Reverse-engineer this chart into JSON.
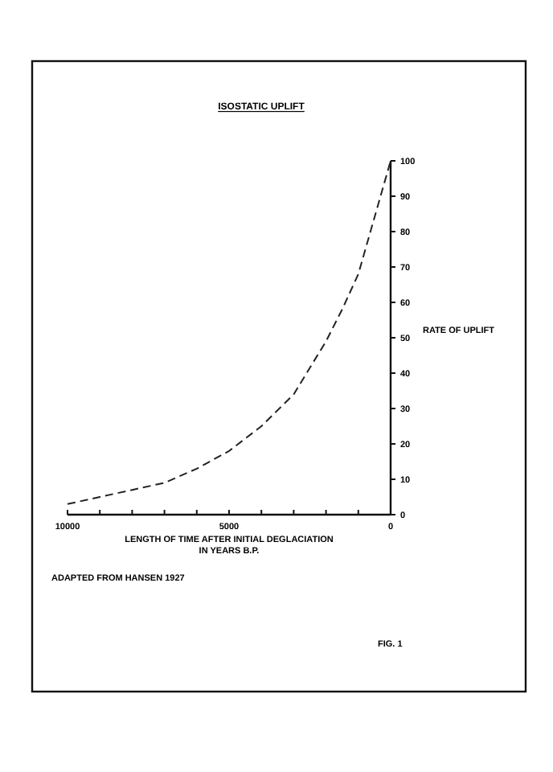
{
  "chart_data": {
    "type": "line",
    "title": "ISOSTATIC UPLIFT",
    "xlabel": "LENGTH OF TIME AFTER INITIAL DEGLACIATION\nIN YEARS B.P.",
    "ylabel": "RATE OF UPLIFT",
    "annotations": [
      "ADAPTED FROM HANSEN 1927",
      "FIG. 1"
    ],
    "x": [
      10000,
      9000,
      8000,
      7000,
      6000,
      5000,
      4000,
      3000,
      2000,
      1500,
      1000,
      500,
      250,
      0
    ],
    "series": [
      {
        "color": "#222222",
        "values": [
          3,
          5,
          7,
          9,
          13,
          18,
          25,
          34,
          49,
          58,
          68,
          84,
          92,
          100
        ]
      }
    ],
    "xlim": [
      10000,
      0
    ],
    "xticks": [
      10000,
      {
        "value": 9000,
        "label": null
      },
      {
        "value": 8000,
        "label": null
      },
      {
        "value": 7000,
        "label": null
      },
      {
        "value": 6000,
        "label": null
      },
      5000,
      {
        "value": 4000,
        "label": null
      },
      {
        "value": 3000,
        "label": null
      },
      {
        "value": 2000,
        "label": null
      },
      {
        "value": 1000,
        "label": null
      },
      0
    ],
    "ylim": [
      0,
      100
    ],
    "yticks": [
      0,
      10,
      20,
      30,
      40,
      50,
      60,
      70,
      80,
      90,
      100
    ],
    "grid": false,
    "marker": "none",
    "line_style": "dashed"
  }
}
